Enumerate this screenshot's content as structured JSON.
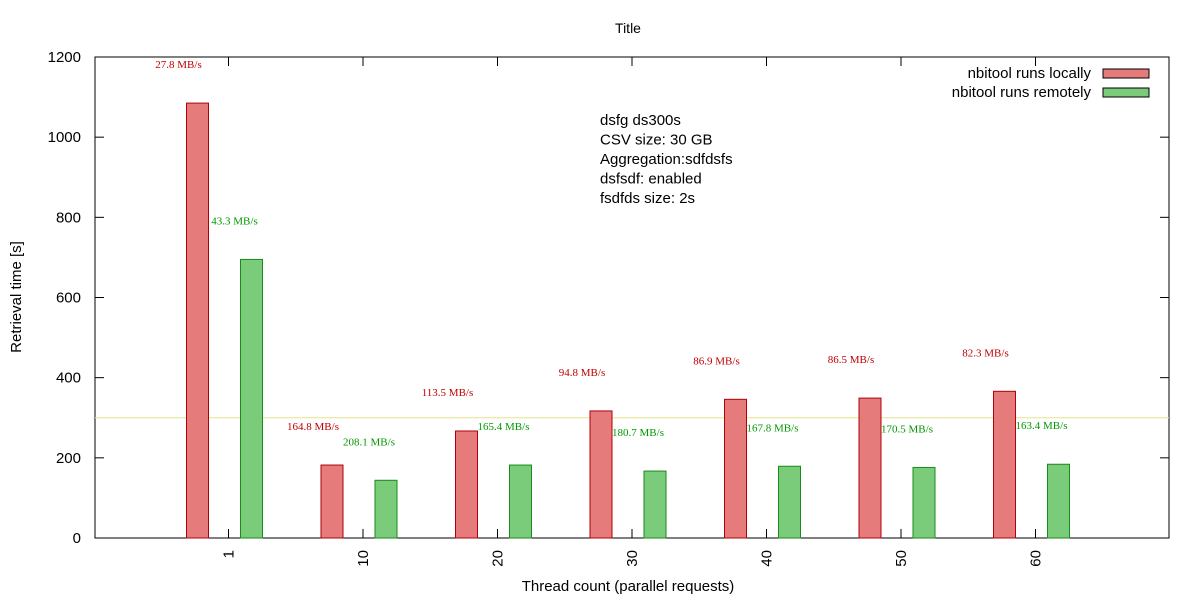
{
  "chart_data": {
    "type": "bar",
    "title": "Title",
    "xlabel": "Thread count (parallel requests)",
    "ylabel": "Retrieval time [s]",
    "categories": [
      "1",
      "10",
      "20",
      "30",
      "40",
      "50",
      "60"
    ],
    "ylim": [
      0,
      1200
    ],
    "yticks": [
      "0",
      "200",
      "400",
      "600",
      "800",
      "1000",
      "1200"
    ],
    "series": [
      {
        "name": "nbitool runs locally",
        "color": "#e57b7b",
        "edge_color": "#b0000a",
        "label_color": "#c00000",
        "values": [
          1085,
          182,
          267,
          317,
          346,
          349,
          366
        ],
        "labels": [
          "27.8 MB/s",
          "164.8 MB/s",
          "113.5 MB/s",
          "94.8 MB/s",
          "86.9 MB/s",
          "86.5 MB/s",
          "82.3 MB/s"
        ]
      },
      {
        "name": "nbitool runs remotely",
        "color": "#7acc7a",
        "edge_color": "#1a8a1a",
        "label_color": "#009900",
        "values": [
          695,
          144,
          182,
          167,
          179,
          176,
          184
        ],
        "labels": [
          "43.3 MB/s",
          "208.1 MB/s",
          "165.4 MB/s",
          "180.7 MB/s",
          "167.8 MB/s",
          "170.5 MB/s",
          "163.4 MB/s"
        ]
      }
    ],
    "reference_line": {
      "value": 300,
      "color": "#e6e68a"
    },
    "legend": {
      "position": "top-right"
    },
    "annotation": [
      "dsfg ds300s",
      "CSV size: 30 GB",
      "Aggregation:sdfdsfs",
      "dsfsdf: enabled",
      "fsdfds size: 2s"
    ],
    "grid": false
  }
}
